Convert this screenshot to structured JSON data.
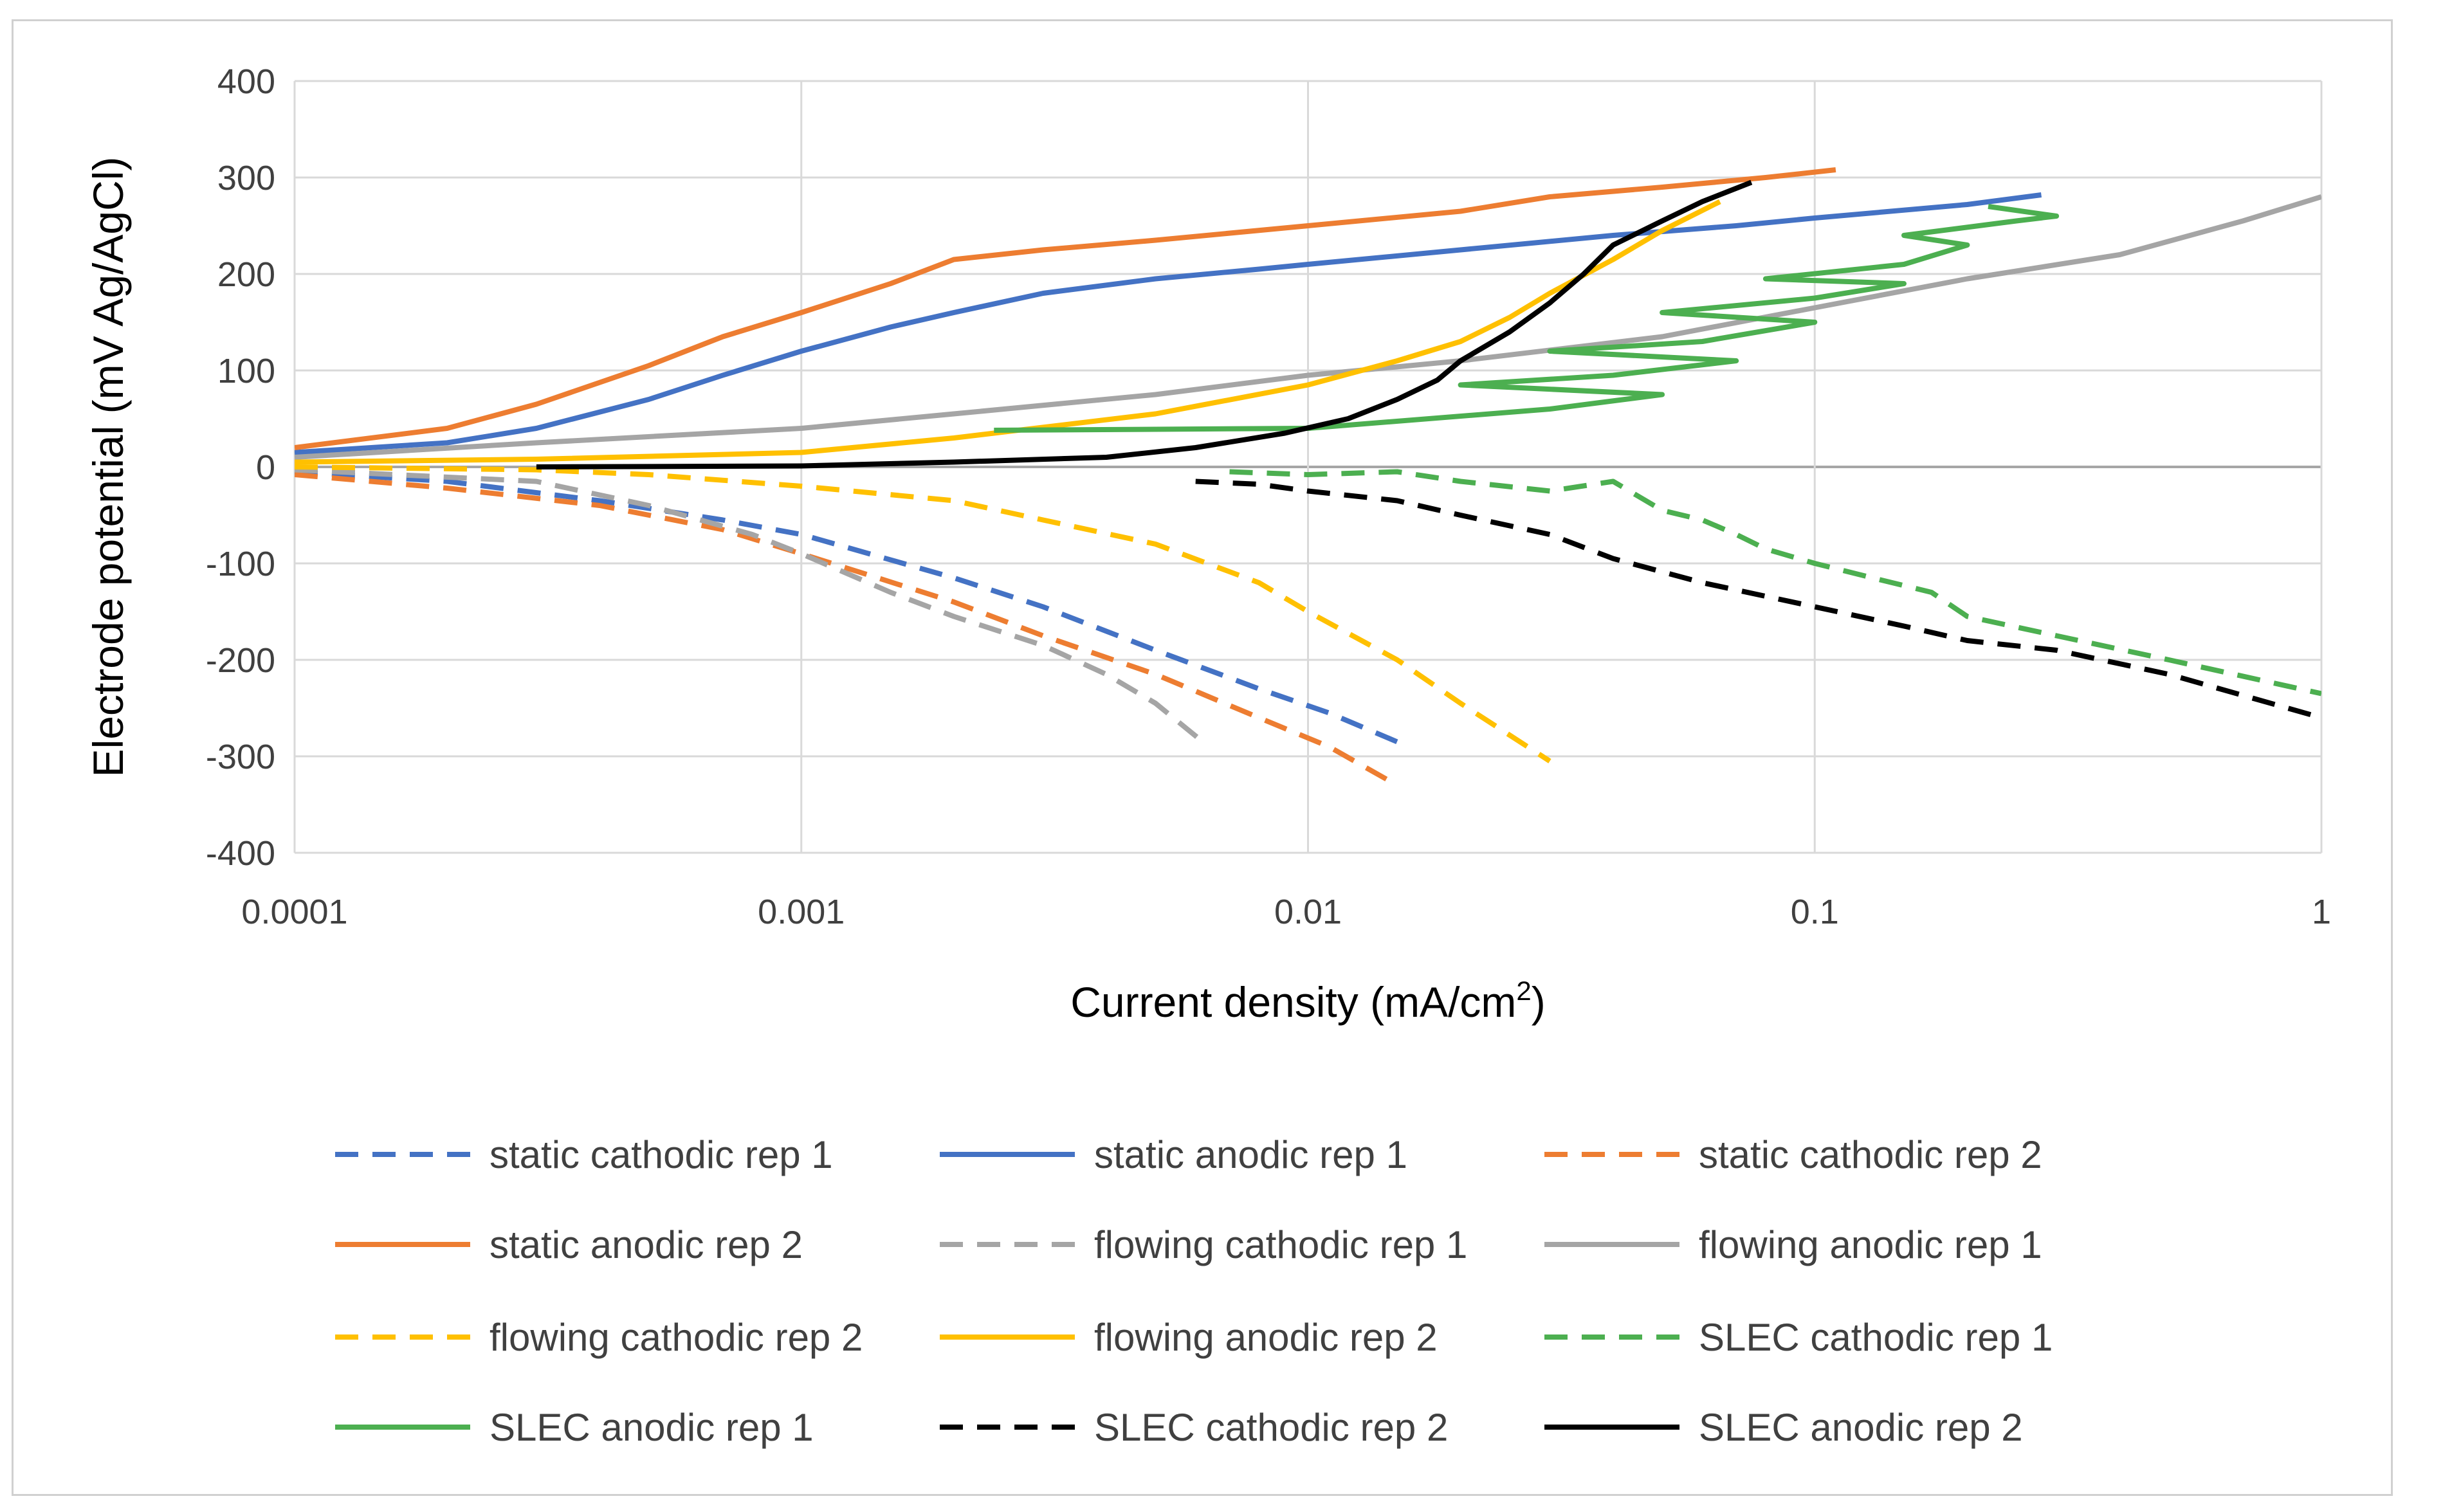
{
  "chart_data": {
    "type": "line",
    "title": "",
    "xlabel": "Current density (mA/cm",
    "xlabel_sup": "2",
    "xlabel_close": ")",
    "ylabel": "Electrode potential (mV Ag/AgCl)",
    "x_scale": "log",
    "xlim": [
      0.0001,
      1
    ],
    "ylim": [
      -400,
      400
    ],
    "x_ticks": [
      0.0001,
      0.001,
      0.01,
      0.1,
      1
    ],
    "x_tick_labels": [
      "0.0001",
      "0.001",
      "0.01",
      "0.1",
      "1"
    ],
    "y_ticks": [
      -400,
      -300,
      -200,
      -100,
      0,
      100,
      200,
      300,
      400
    ],
    "y_tick_labels": [
      "-400",
      "-300",
      "-200",
      "-100",
      "0",
      "100",
      "200",
      "300",
      "400"
    ],
    "grid": true,
    "legend_position": "bottom",
    "series": [
      {
        "name": "static cathodic rep 1",
        "color": "#4472C4",
        "dash": true,
        "points": [
          [
            0.0001,
            -5
          ],
          [
            0.0002,
            -15
          ],
          [
            0.0004,
            -35
          ],
          [
            0.0007,
            -55
          ],
          [
            0.001,
            -70
          ],
          [
            0.002,
            -115
          ],
          [
            0.003,
            -145
          ],
          [
            0.005,
            -190
          ],
          [
            0.008,
            -230
          ],
          [
            0.011,
            -255
          ],
          [
            0.015,
            -285
          ]
        ]
      },
      {
        "name": "static anodic rep 1",
        "color": "#4472C4",
        "dash": false,
        "points": [
          [
            0.0001,
            15
          ],
          [
            0.0002,
            25
          ],
          [
            0.0003,
            40
          ],
          [
            0.0005,
            70
          ],
          [
            0.0007,
            95
          ],
          [
            0.001,
            120
          ],
          [
            0.0015,
            145
          ],
          [
            0.002,
            160
          ],
          [
            0.003,
            180
          ],
          [
            0.005,
            195
          ],
          [
            0.008,
            205
          ],
          [
            0.01,
            210
          ],
          [
            0.02,
            225
          ],
          [
            0.04,
            240
          ],
          [
            0.07,
            250
          ],
          [
            0.1,
            258
          ],
          [
            0.2,
            272
          ],
          [
            0.28,
            282
          ]
        ]
      },
      {
        "name": "static cathodic rep 2",
        "color": "#ED7D31",
        "dash": true,
        "points": [
          [
            0.0001,
            -8
          ],
          [
            0.0002,
            -22
          ],
          [
            0.0004,
            -40
          ],
          [
            0.0007,
            -65
          ],
          [
            0.001,
            -90
          ],
          [
            0.002,
            -140
          ],
          [
            0.003,
            -175
          ],
          [
            0.005,
            -215
          ],
          [
            0.008,
            -260
          ],
          [
            0.011,
            -290
          ],
          [
            0.015,
            -330
          ]
        ]
      },
      {
        "name": "static anodic rep 2",
        "color": "#ED7D31",
        "dash": false,
        "points": [
          [
            0.0001,
            20
          ],
          [
            0.0002,
            40
          ],
          [
            0.0003,
            65
          ],
          [
            0.0005,
            105
          ],
          [
            0.0007,
            135
          ],
          [
            0.001,
            160
          ],
          [
            0.0015,
            190
          ],
          [
            0.002,
            215
          ],
          [
            0.003,
            225
          ],
          [
            0.005,
            235
          ],
          [
            0.01,
            250
          ],
          [
            0.02,
            265
          ],
          [
            0.03,
            280
          ],
          [
            0.05,
            290
          ],
          [
            0.08,
            300
          ],
          [
            0.11,
            308
          ]
        ]
      },
      {
        "name": "flowing cathodic rep 1",
        "color": "#A5A5A5",
        "dash": true,
        "points": [
          [
            0.0001,
            -3
          ],
          [
            0.0003,
            -15
          ],
          [
            0.0005,
            -40
          ],
          [
            0.0008,
            -70
          ],
          [
            0.001,
            -90
          ],
          [
            0.0015,
            -130
          ],
          [
            0.002,
            -155
          ],
          [
            0.003,
            -185
          ],
          [
            0.004,
            -215
          ],
          [
            0.005,
            -245
          ],
          [
            0.0062,
            -285
          ]
        ]
      },
      {
        "name": "flowing anodic rep 1",
        "color": "#A5A5A5",
        "dash": false,
        "points": [
          [
            0.0001,
            10
          ],
          [
            0.0003,
            25
          ],
          [
            0.001,
            40
          ],
          [
            0.002,
            55
          ],
          [
            0.005,
            75
          ],
          [
            0.01,
            95
          ],
          [
            0.02,
            110
          ],
          [
            0.05,
            135
          ],
          [
            0.1,
            165
          ],
          [
            0.2,
            195
          ],
          [
            0.4,
            220
          ],
          [
            0.7,
            255
          ],
          [
            1,
            280
          ]
        ]
      },
      {
        "name": "flowing cathodic rep 2",
        "color": "#FFC000",
        "dash": true,
        "points": [
          [
            0.0001,
            0
          ],
          [
            0.0003,
            -3
          ],
          [
            0.0005,
            -8
          ],
          [
            0.001,
            -20
          ],
          [
            0.002,
            -35
          ],
          [
            0.003,
            -55
          ],
          [
            0.005,
            -80
          ],
          [
            0.008,
            -120
          ],
          [
            0.01,
            -150
          ],
          [
            0.015,
            -200
          ],
          [
            0.02,
            -245
          ],
          [
            0.03,
            -305
          ]
        ]
      },
      {
        "name": "flowing anodic rep 2",
        "color": "#FFC000",
        "dash": false,
        "points": [
          [
            0.0001,
            5
          ],
          [
            0.0003,
            8
          ],
          [
            0.001,
            15
          ],
          [
            0.002,
            30
          ],
          [
            0.005,
            55
          ],
          [
            0.01,
            85
          ],
          [
            0.015,
            110
          ],
          [
            0.02,
            130
          ],
          [
            0.025,
            155
          ],
          [
            0.03,
            180
          ],
          [
            0.04,
            215
          ],
          [
            0.05,
            245
          ],
          [
            0.065,
            275
          ]
        ]
      },
      {
        "name": "SLEC cathodic rep 1",
        "color": "#4CAF50",
        "dash": true,
        "points": [
          [
            0.007,
            -5
          ],
          [
            0.01,
            -8
          ],
          [
            0.015,
            -5
          ],
          [
            0.02,
            -15
          ],
          [
            0.03,
            -25
          ],
          [
            0.04,
            -15
          ],
          [
            0.05,
            -45
          ],
          [
            0.06,
            -55
          ],
          [
            0.07,
            -70
          ],
          [
            0.08,
            -85
          ],
          [
            0.1,
            -100
          ],
          [
            0.13,
            -115
          ],
          [
            0.17,
            -130
          ],
          [
            0.2,
            -155
          ],
          [
            0.3,
            -175
          ],
          [
            0.5,
            -200
          ],
          [
            1,
            -235
          ]
        ]
      },
      {
        "name": "SLEC anodic rep 1",
        "color": "#4CAF50",
        "dash": false,
        "points": [
          [
            0.0024,
            38
          ],
          [
            0.01,
            40
          ],
          [
            0.03,
            60
          ],
          [
            0.05,
            75
          ],
          [
            0.02,
            85
          ],
          [
            0.04,
            95
          ],
          [
            0.07,
            110
          ],
          [
            0.03,
            120
          ],
          [
            0.06,
            130
          ],
          [
            0.1,
            150
          ],
          [
            0.05,
            160
          ],
          [
            0.1,
            175
          ],
          [
            0.15,
            190
          ],
          [
            0.08,
            195
          ],
          [
            0.15,
            210
          ],
          [
            0.2,
            230
          ],
          [
            0.15,
            240
          ],
          [
            0.25,
            255
          ],
          [
            0.3,
            260
          ],
          [
            0.22,
            270
          ]
        ]
      },
      {
        "name": "SLEC cathodic rep 2",
        "color": "#000000",
        "dash": true,
        "points": [
          [
            0.006,
            -15
          ],
          [
            0.008,
            -18
          ],
          [
            0.01,
            -25
          ],
          [
            0.015,
            -35
          ],
          [
            0.02,
            -50
          ],
          [
            0.03,
            -70
          ],
          [
            0.04,
            -95
          ],
          [
            0.06,
            -120
          ],
          [
            0.1,
            -145
          ],
          [
            0.15,
            -165
          ],
          [
            0.2,
            -180
          ],
          [
            0.3,
            -190
          ],
          [
            0.5,
            -215
          ],
          [
            1,
            -260
          ]
        ]
      },
      {
        "name": "SLEC anodic rep 2",
        "color": "#000000",
        "dash": false,
        "points": [
          [
            0.0003,
            0
          ],
          [
            0.001,
            1
          ],
          [
            0.002,
            5
          ],
          [
            0.004,
            10
          ],
          [
            0.006,
            20
          ],
          [
            0.009,
            35
          ],
          [
            0.012,
            50
          ],
          [
            0.015,
            70
          ],
          [
            0.018,
            90
          ],
          [
            0.02,
            110
          ],
          [
            0.025,
            140
          ],
          [
            0.03,
            170
          ],
          [
            0.035,
            200
          ],
          [
            0.04,
            230
          ],
          [
            0.05,
            255
          ],
          [
            0.06,
            275
          ],
          [
            0.075,
            295
          ]
        ]
      }
    ]
  }
}
